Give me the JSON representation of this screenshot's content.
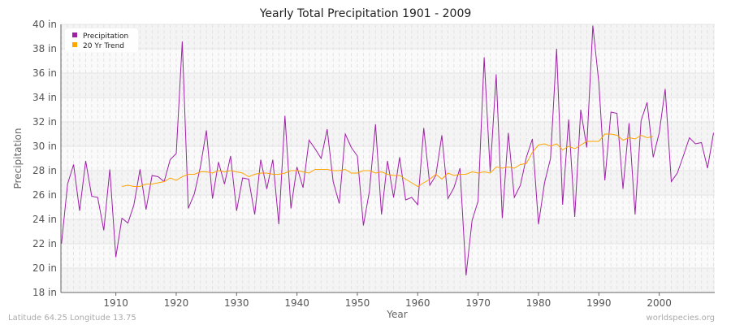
{
  "chart_data": {
    "type": "line",
    "title": "Yearly Total Precipitation 1901 - 2009",
    "xlabel": "Year",
    "ylabel": "Precipitation",
    "xlim": [
      1901,
      2009
    ],
    "ylim": [
      18,
      40
    ],
    "y_ticks": [
      "18 in",
      "20 in",
      "22 in",
      "24 in",
      "26 in",
      "28 in",
      "30 in",
      "32 in",
      "34 in",
      "36 in",
      "38 in",
      "40 in"
    ],
    "x_ticks": [
      "1910",
      "1920",
      "1930",
      "1940",
      "1950",
      "1960",
      "1970",
      "1980",
      "1990",
      "2000"
    ],
    "grid": true,
    "legend_position": "top-left",
    "series": [
      {
        "name": "Precipitation",
        "color": "#a020a8",
        "x_start": 1901,
        "values": [
          22.0,
          26.9,
          28.5,
          24.7,
          28.8,
          25.9,
          25.8,
          23.1,
          28.1,
          20.9,
          24.1,
          23.7,
          25.2,
          28.1,
          24.8,
          27.6,
          27.5,
          27.1,
          28.9,
          29.4,
          38.6,
          24.9,
          26.1,
          28.3,
          31.3,
          25.7,
          28.7,
          26.9,
          29.2,
          24.7,
          27.4,
          27.3,
          24.4,
          28.9,
          26.5,
          28.9,
          23.6,
          32.5,
          24.9,
          28.3,
          26.6,
          30.5,
          29.8,
          29.0,
          31.4,
          27.1,
          25.3,
          31.0,
          29.9,
          29.2,
          23.5,
          26.3,
          31.8,
          24.4,
          28.8,
          25.8,
          29.1,
          25.6,
          25.8,
          25.2,
          31.5,
          26.8,
          27.6,
          30.9,
          25.7,
          26.6,
          28.2,
          19.4,
          23.9,
          25.5,
          37.3,
          27.9,
          35.9,
          24.1,
          31.1,
          25.8,
          26.8,
          29.1,
          30.6,
          23.6,
          27.0,
          29.0,
          38.0,
          25.2,
          32.2,
          24.2,
          33.0,
          29.9,
          39.9,
          35.2,
          27.2,
          32.8,
          32.7,
          26.5,
          31.9,
          24.4,
          32.1,
          33.6,
          29.1,
          31.1,
          34.7,
          27.1,
          27.8,
          29.2,
          30.7,
          30.2,
          30.3,
          28.2,
          31.1
        ]
      },
      {
        "name": "20 Yr Trend",
        "color": "#ffa500",
        "x_start": 1911,
        "values": [
          26.7,
          26.8,
          26.7,
          26.7,
          26.9,
          26.9,
          27.0,
          27.1,
          27.4,
          27.2,
          27.5,
          27.7,
          27.7,
          27.9,
          27.9,
          27.8,
          28.0,
          27.9,
          28.0,
          27.9,
          27.8,
          27.5,
          27.7,
          27.8,
          27.8,
          27.7,
          27.7,
          27.8,
          28.0,
          28.0,
          27.9,
          27.8,
          28.1,
          28.1,
          28.1,
          28.0,
          28.0,
          28.1,
          27.8,
          27.8,
          28.0,
          28.0,
          27.8,
          27.9,
          27.7,
          27.6,
          27.6,
          27.3,
          27.0,
          26.7,
          27.0,
          27.3,
          27.7,
          27.3,
          27.8,
          27.6,
          27.7,
          27.7,
          27.9,
          27.8,
          27.9,
          27.8,
          28.3,
          28.2,
          28.3,
          28.2,
          28.5,
          28.6,
          29.5,
          30.1,
          30.2,
          30.0,
          30.2,
          29.7,
          30.0,
          29.8,
          30.1,
          30.4,
          30.4,
          30.4,
          31.0,
          31.0,
          30.9,
          30.5,
          30.7,
          30.6,
          30.9,
          30.7,
          30.8
        ]
      }
    ]
  },
  "footer": {
    "location": "Latitude 64.25 Longitude 13.75",
    "source": "worldspecies.org"
  }
}
